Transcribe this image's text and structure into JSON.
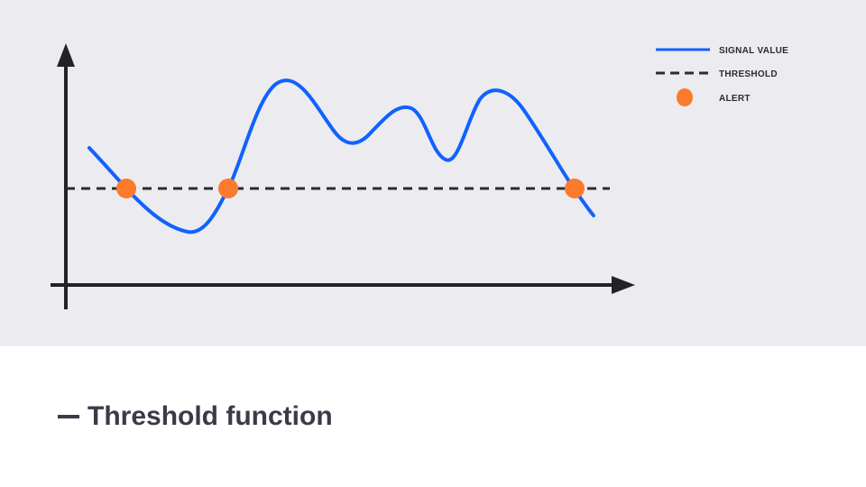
{
  "legend": {
    "signal_label": "SIGNAL VALUE",
    "threshold_label": "THRESHOLD",
    "alert_label": "ALERT"
  },
  "caption": {
    "text": "Threshold function"
  },
  "colors": {
    "signal": "#0f62fe",
    "threshold": "#2b2b35",
    "alert": "#fb7a2b",
    "axes": "#232323",
    "panel_background": "#ecebf0"
  }
}
